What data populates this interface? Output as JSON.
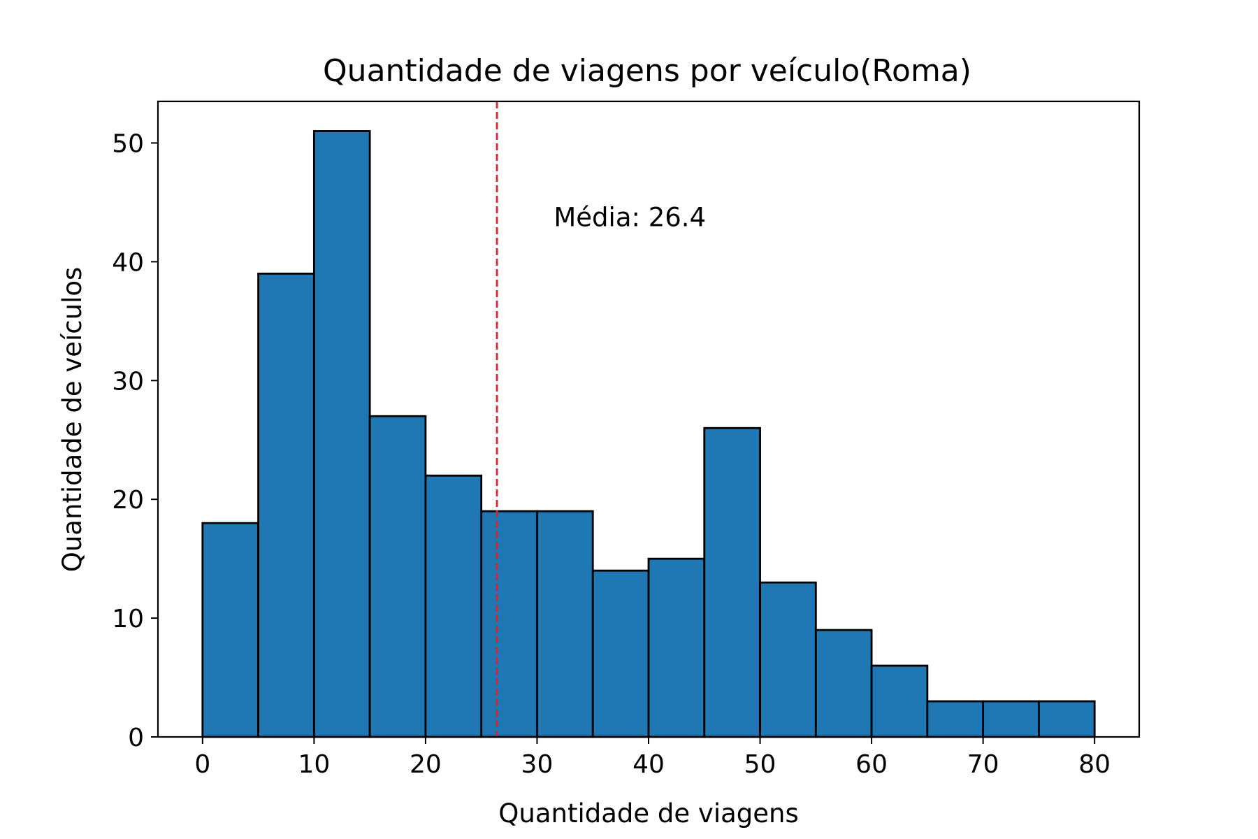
{
  "chart_data": {
    "type": "bar",
    "title": "Quantidade de viagens por veículo(Roma)",
    "xlabel": "Quantidade de viagens",
    "ylabel": "Quantidade de veículos",
    "bin_edges": [
      0,
      5,
      10,
      15,
      20,
      25,
      30,
      35,
      40,
      45,
      50,
      55,
      60,
      65,
      70,
      75,
      80
    ],
    "values": [
      18,
      39,
      51,
      27,
      22,
      19,
      19,
      14,
      15,
      26,
      13,
      9,
      6,
      3,
      3,
      3
    ],
    "xlim": [
      -4,
      84
    ],
    "ylim": [
      0,
      53.5
    ],
    "xticks": [
      0,
      10,
      20,
      30,
      40,
      50,
      60,
      70,
      80
    ],
    "yticks": [
      0,
      10,
      20,
      30,
      40,
      50
    ],
    "mean_line": {
      "x": 26.4,
      "label": "Média: 26.4",
      "label_x": 31.5,
      "label_y": 43
    },
    "grid": false,
    "legend": "none",
    "colors": {
      "bar": "#1f77b4",
      "bar_edge": "#000000",
      "mean_line": "#d62728"
    }
  }
}
